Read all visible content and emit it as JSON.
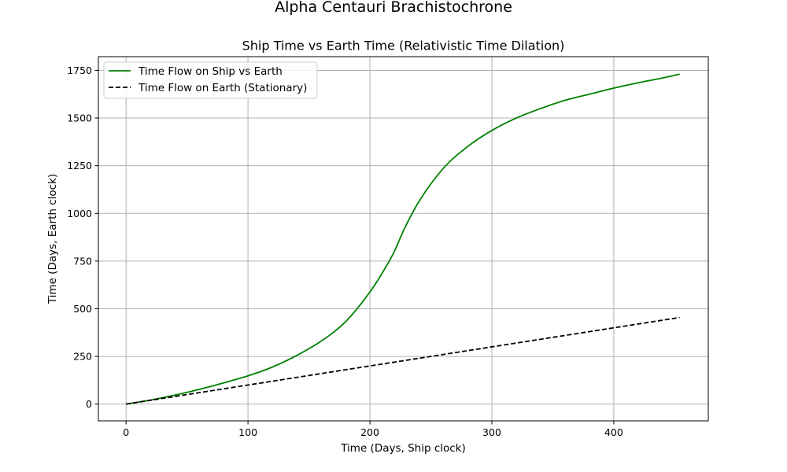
{
  "suptitle": "Alpha Centauri Brachistochrone",
  "chart_data": {
    "type": "line",
    "title": "Ship Time vs Earth Time (Relativistic Time Dilation)",
    "xlabel": "Time (Days, Ship clock)",
    "ylabel": "Time (Days, Earth clock)",
    "xlim": [
      -22.7,
      477.5
    ],
    "ylim": [
      -88,
      1822
    ],
    "xticks": [
      0,
      100,
      200,
      300,
      400
    ],
    "yticks": [
      0,
      250,
      500,
      750,
      1000,
      1250,
      1500,
      1750
    ],
    "grid": true,
    "legend": "upper-left",
    "series": [
      {
        "name": "Time Flow on Ship vs Earth",
        "color": "#008000",
        "style": "solid",
        "x": [
          0,
          20,
          40,
          60,
          80,
          100,
          120,
          140,
          160,
          180,
          200,
          210,
          220,
          228,
          240,
          260,
          280,
          300,
          320,
          340,
          360,
          380,
          400,
          420,
          440,
          454
        ],
        "y": [
          0,
          21,
          47,
          77,
          111,
          148,
          194,
          255,
          330,
          432,
          588,
          686,
          800,
          916,
          1060,
          1235,
          1350,
          1435,
          1500,
          1550,
          1593,
          1625,
          1657,
          1685,
          1710,
          1730
        ]
      },
      {
        "name": "Time Flow on Earth (Stationary)",
        "color": "#000000",
        "style": "dashed",
        "x": [
          0,
          454
        ],
        "y": [
          0,
          454
        ]
      }
    ]
  }
}
